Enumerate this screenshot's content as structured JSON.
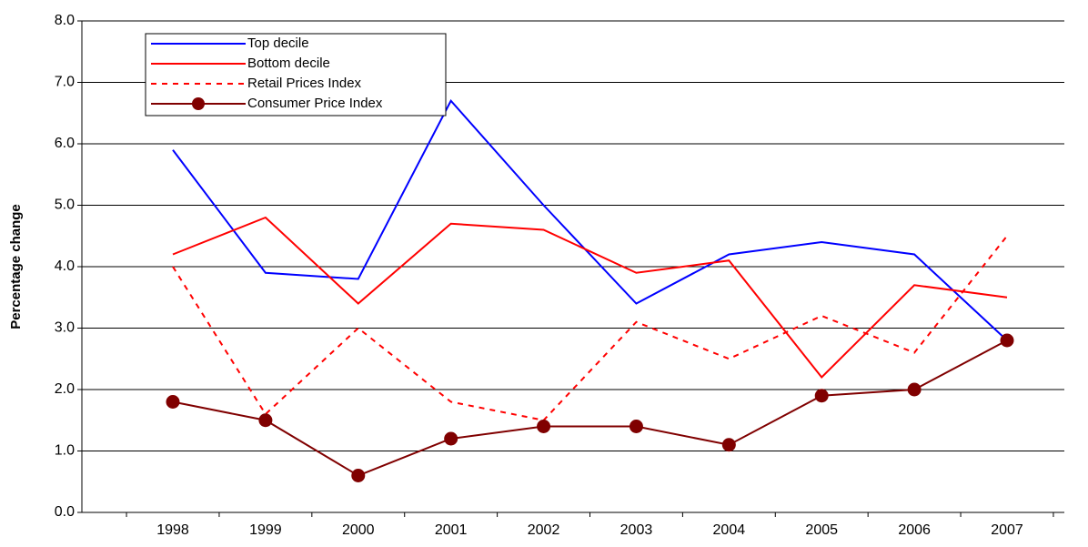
{
  "chart_data": {
    "type": "line",
    "y_label": "Percentage change",
    "categories": [
      "1998",
      "1999",
      "2000",
      "2001",
      "2002",
      "2003",
      "2004",
      "2005",
      "2006",
      "2007"
    ],
    "series": [
      {
        "name": "Top decile",
        "color": "#0000ff",
        "linestyle": "solid",
        "marker": "none",
        "values": [
          5.9,
          3.9,
          3.8,
          6.7,
          5.0,
          3.4,
          4.2,
          4.4,
          4.2,
          2.8
        ]
      },
      {
        "name": "Bottom decile",
        "color": "#ff0000",
        "linestyle": "solid",
        "marker": "none",
        "values": [
          4.2,
          4.8,
          3.4,
          4.7,
          4.6,
          3.9,
          4.1,
          2.2,
          3.7,
          3.5
        ]
      },
      {
        "name": "Retail Prices Index",
        "color": "#ff0000",
        "linestyle": "dashed",
        "marker": "none",
        "values": [
          4.0,
          1.6,
          3.0,
          1.8,
          1.5,
          3.1,
          2.5,
          3.2,
          2.6,
          4.5
        ]
      },
      {
        "name": "Consumer Price Index",
        "color": "#800000",
        "linestyle": "solid",
        "marker": "circle",
        "values": [
          1.8,
          1.5,
          0.6,
          1.2,
          1.4,
          1.4,
          1.1,
          1.9,
          2.0,
          2.8
        ]
      }
    ],
    "ylim": [
      0,
      8
    ],
    "yticks": [
      {
        "value": 0,
        "label": "0.0"
      },
      {
        "value": 1,
        "label": "1.0"
      },
      {
        "value": 2,
        "label": "2.0"
      },
      {
        "value": 3,
        "label": "3.0"
      },
      {
        "value": 4,
        "label": "4.0"
      },
      {
        "value": 5,
        "label": "5.0"
      },
      {
        "value": 6,
        "label": "6.0"
      },
      {
        "value": 7,
        "label": "7.0"
      },
      {
        "value": 8,
        "label": "8.0"
      }
    ],
    "grid": true,
    "legend": "upper left"
  }
}
